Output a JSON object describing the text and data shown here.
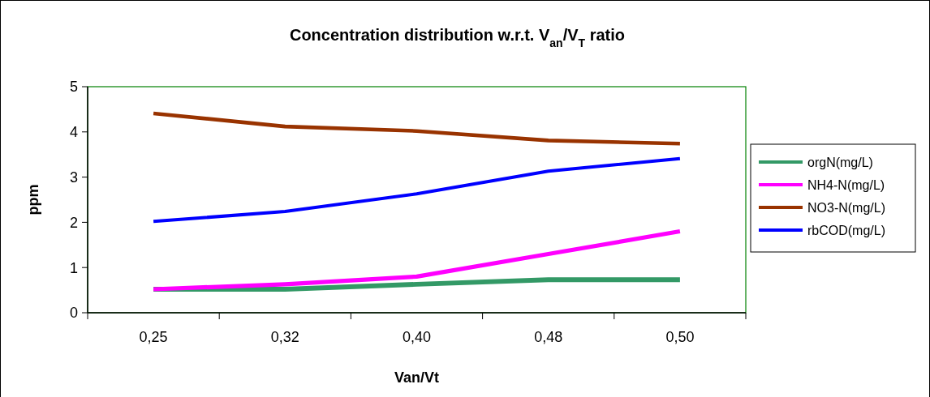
{
  "chart_data": {
    "type": "line",
    "title": "Concentration distribution w.r.t. V$_{an}$/V$_{T}$ ratio",
    "xlabel": "Van/Vt",
    "ylabel": "ppm",
    "categories": [
      "0,25",
      "0,32",
      "0,40",
      "0,48",
      "0,50"
    ],
    "ylim": [
      0,
      5
    ],
    "yticks": [
      0,
      1,
      2,
      3,
      4,
      5
    ],
    "grid": false,
    "legend": "right",
    "marker": "none",
    "line_style": "solid",
    "series": [
      {
        "name": "orgN(mg/L)",
        "color": "#339966",
        "values": [
          0.52,
          0.52,
          0.63,
          0.73,
          0.73
        ]
      },
      {
        "name": "NH4-N(mg/L)",
        "color": "#ff00ff",
        "values": [
          0.52,
          0.63,
          0.8,
          1.3,
          1.8
        ]
      },
      {
        "name": "NO3-N(mg/L)",
        "color": "#993300",
        "values": [
          4.41,
          4.12,
          4.02,
          3.81,
          3.74
        ]
      },
      {
        "name": "rbCOD(mg/L)",
        "color": "#0000ff",
        "values": [
          2.02,
          2.24,
          2.63,
          3.13,
          3.41
        ]
      }
    ]
  }
}
